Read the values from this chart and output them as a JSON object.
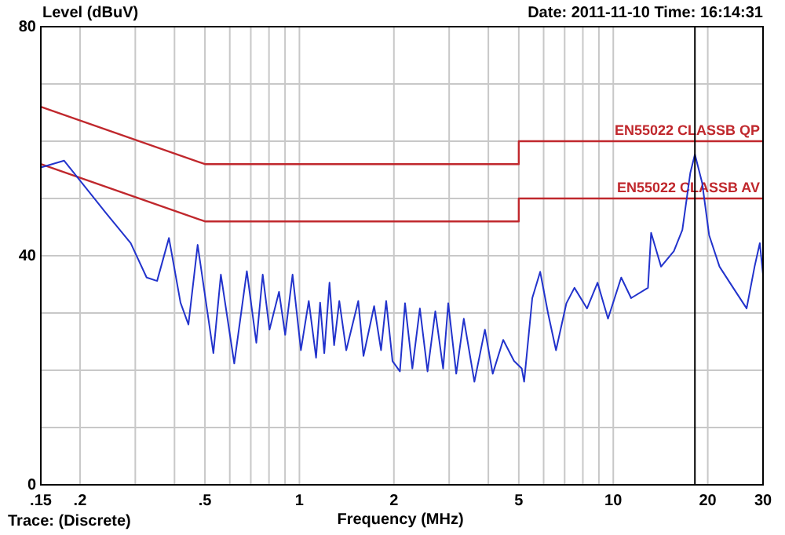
{
  "chart_data": {
    "type": "line",
    "ylabel": "Level (dBuV)",
    "xlabel": "Frequency (MHz)",
    "annotations": [
      "Date: 2011-11-10  Time: 16:14:31",
      "Trace: (Discrete)"
    ],
    "log": "x",
    "grid": true,
    "xlim": [
      0.15,
      30
    ],
    "ylim": [
      0,
      80
    ],
    "xticks": [
      {
        "value": 0.15,
        "label": ".15"
      },
      {
        "value": 0.2,
        "label": ".2"
      },
      {
        "value": 0.3,
        "label": null
      },
      {
        "value": 0.4,
        "label": null
      },
      {
        "value": 0.5,
        "label": ".5"
      },
      {
        "value": 0.6,
        "label": null
      },
      {
        "value": 0.7,
        "label": null
      },
      {
        "value": 0.8,
        "label": null
      },
      {
        "value": 0.9,
        "label": null
      },
      1,
      2,
      {
        "value": 3,
        "label": null
      },
      {
        "value": 4,
        "label": null
      },
      5,
      {
        "value": 6,
        "label": null
      },
      {
        "value": 7,
        "label": null
      },
      {
        "value": 8,
        "label": null
      },
      {
        "value": 9,
        "label": null
      },
      10,
      20,
      30
    ],
    "yticks": [
      0,
      {
        "value": 10,
        "label": null
      },
      {
        "value": 20,
        "label": null
      },
      {
        "value": 30,
        "label": null
      },
      40,
      {
        "value": 50,
        "label": null
      },
      {
        "value": 60,
        "label": null
      },
      {
        "value": 70,
        "label": null
      },
      80
    ],
    "ref_lines": [
      {
        "axis": "x",
        "value": 18.2,
        "color": "#000000"
      }
    ],
    "series": [
      {
        "name": "EN55022 CLASSB QP",
        "color": "#c0282d",
        "x": [
          0.15,
          0.5,
          5,
          5,
          30
        ],
        "values": [
          66,
          56,
          56,
          60,
          60
        ]
      },
      {
        "name": "EN55022 CLASSB AV",
        "color": "#c0282d",
        "x": [
          0.15,
          0.5,
          5,
          5,
          30
        ],
        "values": [
          56,
          46,
          46,
          50,
          50
        ]
      },
      {
        "color": "#2233cc",
        "x": [
          0.15,
          0.178,
          0.24,
          0.29,
          0.326,
          0.352,
          0.384,
          0.418,
          0.443,
          0.474,
          0.532,
          0.562,
          0.62,
          0.68,
          0.729,
          0.764,
          0.803,
          0.861,
          0.901,
          0.951,
          1.011,
          1.071,
          1.13,
          1.164,
          1.2,
          1.247,
          1.29,
          1.34,
          1.41,
          1.54,
          1.6,
          1.73,
          1.82,
          1.89,
          1.98,
          2.09,
          2.17,
          2.29,
          2.42,
          2.56,
          2.71,
          2.87,
          2.98,
          3.16,
          3.34,
          3.61,
          3.9,
          4.13,
          4.46,
          4.83,
          5.11,
          5.2,
          5.52,
          5.85,
          6.2,
          6.57,
          7.09,
          7.52,
          8.25,
          8.91,
          9.62,
          10.6,
          11.4,
          12.9,
          13.2,
          14.2,
          15.6,
          16.6,
          17.6,
          18.2,
          19.2,
          20.2,
          21.8,
          24.1,
          26.6,
          28.2,
          29.3,
          30
        ],
        "values": [
          55.4,
          56.6,
          47.7,
          42.2,
          36.2,
          35.6,
          43.1,
          31.8,
          28,
          41.9,
          23,
          36.7,
          21.2,
          37.3,
          24.8,
          36.7,
          27.1,
          33.7,
          26.2,
          36.7,
          23.5,
          32.1,
          22.2,
          31.8,
          23,
          35.3,
          24.4,
          32.1,
          23.5,
          32.1,
          22.5,
          31.2,
          23.5,
          32.1,
          21.6,
          19.8,
          31.7,
          20.3,
          30.8,
          19.8,
          30.3,
          20.3,
          31.7,
          19.4,
          29,
          18,
          27.1,
          19.4,
          25.3,
          21.6,
          20.3,
          18,
          32.6,
          37.2,
          29.9,
          23.5,
          31.7,
          34.4,
          30.8,
          35.3,
          29,
          36.2,
          32.6,
          34.4,
          44,
          38.1,
          40.8,
          44.5,
          54.5,
          57.7,
          52.7,
          43.6,
          38.1,
          34.4,
          30.8,
          38.1,
          42.2,
          36.7
        ]
      }
    ]
  }
}
